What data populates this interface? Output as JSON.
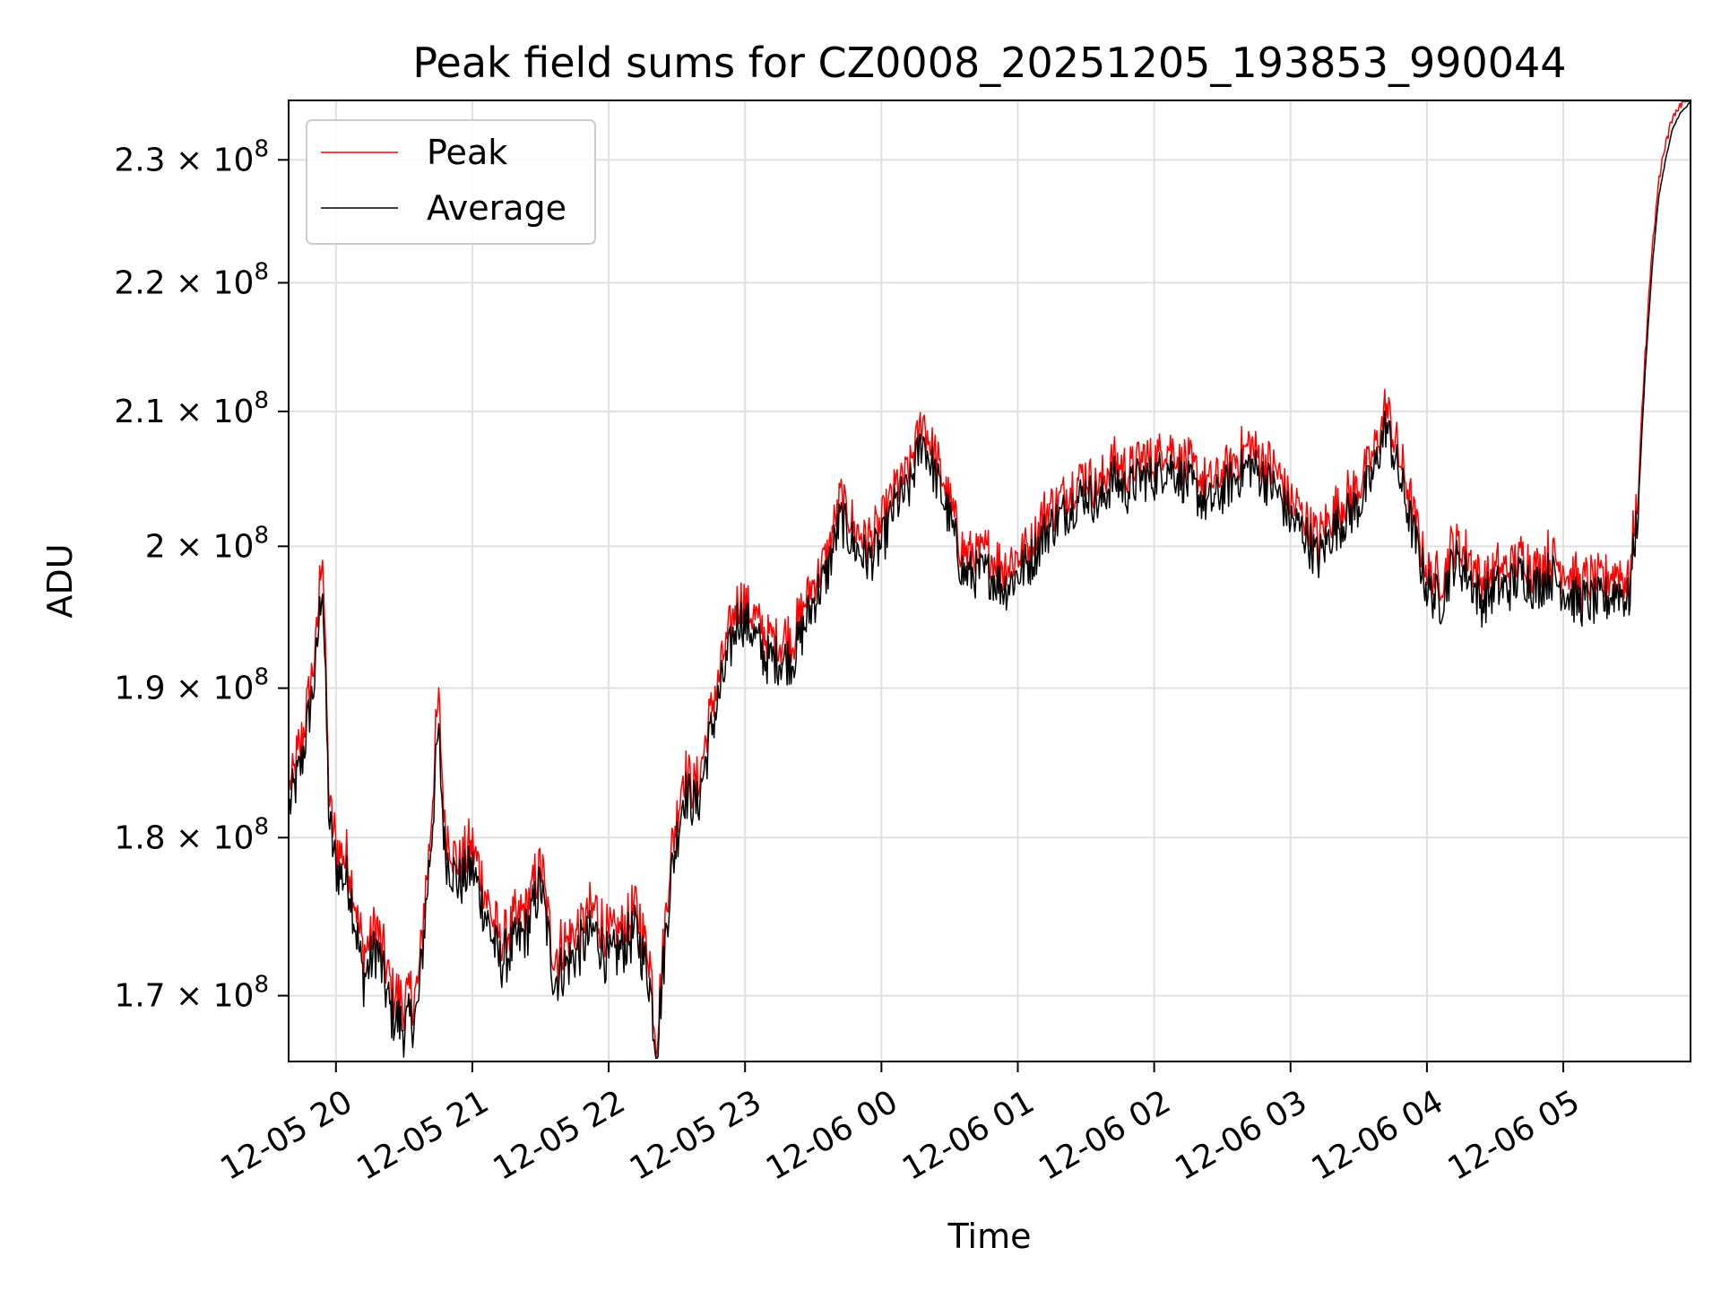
{
  "chart_data": {
    "type": "line",
    "title": "Peak field sums for CZ0008_20251205_193853_990044",
    "xlabel": "Time",
    "ylabel": "ADU",
    "yscale": "log",
    "x_unit": "hours since 12-05 19:00",
    "xlim": [
      19.653,
      29.933
    ],
    "ylim": [
      166000000,
      235000000
    ],
    "grid": true,
    "legend_position": "upper-left",
    "x_ticks": [
      {
        "value": 20,
        "label": "12-05 20"
      },
      {
        "value": 21,
        "label": "12-05 21"
      },
      {
        "value": 22,
        "label": "12-05 22"
      },
      {
        "value": 23,
        "label": "12-05 23"
      },
      {
        "value": 24,
        "label": "12-06 00"
      },
      {
        "value": 25,
        "label": "12-06 01"
      },
      {
        "value": 26,
        "label": "12-06 02"
      },
      {
        "value": 27,
        "label": "12-06 03"
      },
      {
        "value": 28,
        "label": "12-06 04"
      },
      {
        "value": 29,
        "label": "12-06 05"
      }
    ],
    "y_ticks": [
      {
        "value": 170000000,
        "mantissa": "1.7",
        "exponent": "8"
      },
      {
        "value": 180000000,
        "mantissa": "1.8",
        "exponent": "8"
      },
      {
        "value": 190000000,
        "mantissa": "1.9",
        "exponent": "8"
      },
      {
        "value": 200000000,
        "mantissa": "2",
        "exponent": "8"
      },
      {
        "value": 210000000,
        "mantissa": "2.1",
        "exponent": "8"
      },
      {
        "value": 220000000,
        "mantissa": "2.2",
        "exponent": "8"
      },
      {
        "value": 230000000,
        "mantissa": "2.3",
        "exponent": "8"
      }
    ],
    "times_label": "×",
    "series": [
      {
        "name": "Peak",
        "color": "#ff0000",
        "points": [
          [
            19.66,
            183
          ],
          [
            19.75,
            186
          ],
          [
            19.85,
            192
          ],
          [
            19.9,
            200
          ],
          [
            19.95,
            182
          ],
          [
            20.0,
            179
          ],
          [
            20.1,
            178
          ],
          [
            20.2,
            172
          ],
          [
            20.3,
            174
          ],
          [
            20.4,
            170
          ],
          [
            20.5,
            169
          ],
          [
            20.6,
            170
          ],
          [
            20.7,
            181
          ],
          [
            20.75,
            189
          ],
          [
            20.8,
            180
          ],
          [
            20.9,
            178
          ],
          [
            21.0,
            179
          ],
          [
            21.1,
            176
          ],
          [
            21.2,
            173
          ],
          [
            21.3,
            174
          ],
          [
            21.4,
            175
          ],
          [
            21.5,
            178
          ],
          [
            21.6,
            172
          ],
          [
            21.7,
            173
          ],
          [
            21.8,
            174
          ],
          [
            21.9,
            175
          ],
          [
            22.0,
            173
          ],
          [
            22.1,
            174
          ],
          [
            22.2,
            175
          ],
          [
            22.3,
            172
          ],
          [
            22.35,
            167
          ],
          [
            22.45,
            178
          ],
          [
            22.55,
            184
          ],
          [
            22.65,
            183
          ],
          [
            22.75,
            188
          ],
          [
            22.85,
            192
          ],
          [
            22.95,
            196
          ],
          [
            23.05,
            195
          ],
          [
            23.15,
            193
          ],
          [
            23.25,
            193
          ],
          [
            23.35,
            193
          ],
          [
            23.5,
            197
          ],
          [
            23.6,
            199
          ],
          [
            23.7,
            203
          ],
          [
            23.8,
            201
          ],
          [
            23.9,
            200
          ],
          [
            24.0,
            201
          ],
          [
            24.1,
            204
          ],
          [
            24.2,
            205
          ],
          [
            24.3,
            209
          ],
          [
            24.4,
            206
          ],
          [
            24.5,
            203
          ],
          [
            24.6,
            199
          ],
          [
            24.7,
            199
          ],
          [
            24.8,
            199
          ],
          [
            24.9,
            198
          ],
          [
            25.0,
            199
          ],
          [
            25.1,
            200
          ],
          [
            25.2,
            202
          ],
          [
            25.3,
            203
          ],
          [
            25.4,
            204
          ],
          [
            25.5,
            205
          ],
          [
            25.6,
            204
          ],
          [
            25.7,
            206
          ],
          [
            25.8,
            205
          ],
          [
            25.9,
            206
          ],
          [
            26.0,
            206
          ],
          [
            26.1,
            207
          ],
          [
            26.2,
            206
          ],
          [
            26.3,
            205
          ],
          [
            26.4,
            204
          ],
          [
            26.5,
            205
          ],
          [
            26.6,
            206
          ],
          [
            26.7,
            207
          ],
          [
            26.8,
            206
          ],
          [
            26.9,
            205
          ],
          [
            27.0,
            203
          ],
          [
            27.1,
            202
          ],
          [
            27.2,
            200
          ],
          [
            27.3,
            202
          ],
          [
            27.4,
            203
          ],
          [
            27.5,
            204
          ],
          [
            27.6,
            206
          ],
          [
            27.7,
            210
          ],
          [
            27.8,
            206
          ],
          [
            27.9,
            202
          ],
          [
            28.0,
            198
          ],
          [
            28.1,
            197
          ],
          [
            28.2,
            200
          ],
          [
            28.3,
            199
          ],
          [
            28.4,
            197
          ],
          [
            28.5,
            198
          ],
          [
            28.6,
            198
          ],
          [
            28.7,
            199
          ],
          [
            28.8,
            198
          ],
          [
            28.9,
            199
          ],
          [
            29.0,
            198
          ],
          [
            29.1,
            197
          ],
          [
            29.2,
            197
          ],
          [
            29.3,
            197
          ],
          [
            29.4,
            198
          ],
          [
            29.48,
            197
          ],
          [
            29.55,
            204
          ],
          [
            29.6,
            214
          ],
          [
            29.65,
            222
          ],
          [
            29.7,
            228
          ],
          [
            29.75,
            231
          ],
          [
            29.8,
            233
          ],
          [
            29.85,
            234
          ],
          [
            29.93,
            235
          ]
        ]
      },
      {
        "name": "Average",
        "color": "#000000",
        "points": [
          [
            19.66,
            182
          ],
          [
            19.75,
            185
          ],
          [
            19.85,
            191
          ],
          [
            19.9,
            198
          ],
          [
            19.95,
            181
          ],
          [
            20.0,
            178
          ],
          [
            20.1,
            177
          ],
          [
            20.2,
            171
          ],
          [
            20.3,
            173
          ],
          [
            20.4,
            169
          ],
          [
            20.5,
            168
          ],
          [
            20.6,
            169
          ],
          [
            20.7,
            180
          ],
          [
            20.75,
            187
          ],
          [
            20.8,
            179
          ],
          [
            20.9,
            177
          ],
          [
            21.0,
            178
          ],
          [
            21.1,
            175
          ],
          [
            21.2,
            172
          ],
          [
            21.3,
            173
          ],
          [
            21.4,
            174
          ],
          [
            21.5,
            177
          ],
          [
            21.6,
            171
          ],
          [
            21.7,
            172
          ],
          [
            21.8,
            173
          ],
          [
            21.9,
            174
          ],
          [
            22.0,
            172
          ],
          [
            22.1,
            173
          ],
          [
            22.2,
            174
          ],
          [
            22.3,
            171
          ],
          [
            22.35,
            166.5
          ],
          [
            22.45,
            177
          ],
          [
            22.55,
            183
          ],
          [
            22.65,
            182
          ],
          [
            22.75,
            187
          ],
          [
            22.85,
            191
          ],
          [
            22.95,
            195
          ],
          [
            23.05,
            194
          ],
          [
            23.15,
            192
          ],
          [
            23.25,
            192
          ],
          [
            23.35,
            192
          ],
          [
            23.5,
            196
          ],
          [
            23.6,
            198
          ],
          [
            23.7,
            202
          ],
          [
            23.8,
            200
          ],
          [
            23.9,
            199
          ],
          [
            24.0,
            200
          ],
          [
            24.1,
            203
          ],
          [
            24.2,
            204
          ],
          [
            24.3,
            208
          ],
          [
            24.4,
            205
          ],
          [
            24.5,
            202
          ],
          [
            24.6,
            198
          ],
          [
            24.7,
            198
          ],
          [
            24.8,
            198
          ],
          [
            24.9,
            197
          ],
          [
            25.0,
            198
          ],
          [
            25.1,
            199
          ],
          [
            25.2,
            201
          ],
          [
            25.3,
            202
          ],
          [
            25.4,
            203
          ],
          [
            25.5,
            204
          ],
          [
            25.6,
            203
          ],
          [
            25.7,
            205
          ],
          [
            25.8,
            204
          ],
          [
            25.9,
            205
          ],
          [
            26.0,
            205
          ],
          [
            26.1,
            206
          ],
          [
            26.2,
            205
          ],
          [
            26.3,
            204
          ],
          [
            26.4,
            203
          ],
          [
            26.5,
            204
          ],
          [
            26.6,
            205
          ],
          [
            26.7,
            206
          ],
          [
            26.8,
            205
          ],
          [
            26.9,
            204
          ],
          [
            27.0,
            202
          ],
          [
            27.1,
            201
          ],
          [
            27.2,
            199
          ],
          [
            27.3,
            201
          ],
          [
            27.4,
            202
          ],
          [
            27.5,
            203
          ],
          [
            27.6,
            205
          ],
          [
            27.7,
            209
          ],
          [
            27.8,
            205
          ],
          [
            27.9,
            201
          ],
          [
            28.0,
            197
          ],
          [
            28.1,
            196
          ],
          [
            28.2,
            199
          ],
          [
            28.3,
            198
          ],
          [
            28.4,
            196
          ],
          [
            28.5,
            197
          ],
          [
            28.6,
            197
          ],
          [
            28.7,
            198
          ],
          [
            28.8,
            197
          ],
          [
            28.9,
            198
          ],
          [
            29.0,
            197
          ],
          [
            29.1,
            196
          ],
          [
            29.2,
            196
          ],
          [
            29.3,
            196
          ],
          [
            29.4,
            197
          ],
          [
            29.48,
            196
          ],
          [
            29.55,
            203
          ],
          [
            29.6,
            213
          ],
          [
            29.65,
            221
          ],
          [
            29.7,
            227
          ],
          [
            29.75,
            230
          ],
          [
            29.8,
            232.5
          ],
          [
            29.85,
            233.8
          ],
          [
            29.93,
            234.8
          ]
        ]
      }
    ]
  }
}
